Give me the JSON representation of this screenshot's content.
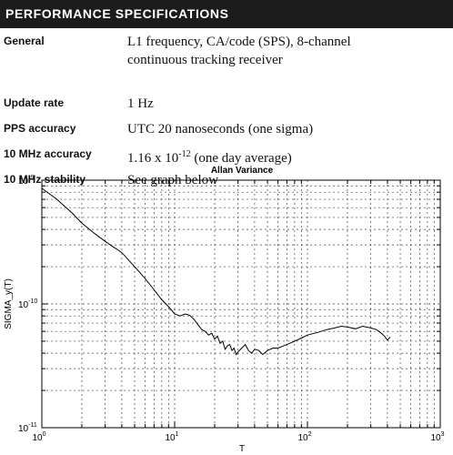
{
  "header": {
    "title": "PERFORMANCE SPECIFICATIONS"
  },
  "specs": [
    {
      "label": "General",
      "value_line1": "L1 frequency, CA/code (SPS), 8-channel",
      "value_line2": "continuous tracking receiver"
    },
    {
      "label": "Update rate",
      "value_line1": "1 Hz"
    },
    {
      "label": "PPS accuracy",
      "value_line1": "UTC 20 nanoseconds (one sigma)"
    },
    {
      "label": "10 MHz accuracy",
      "value_pre": "1.16 x 10",
      "value_exp": "-12",
      "value_post": " (one day average)"
    },
    {
      "label": "10 MHz stability",
      "value_line1": "See graph below"
    }
  ],
  "chart_data": {
    "type": "line",
    "title": "Allan Variance",
    "xlabel": "T",
    "ylabel": "SIGMA_y(T)",
    "xscale": "log",
    "yscale": "log",
    "xlim": [
      1,
      1000
    ],
    "ylim": [
      1e-11,
      1e-09
    ],
    "grid": true,
    "x_ticks": [
      {
        "base": "10",
        "exp": "0"
      },
      {
        "base": "10",
        "exp": "1"
      },
      {
        "base": "10",
        "exp": "2"
      },
      {
        "base": "10",
        "exp": "3"
      }
    ],
    "y_ticks": [
      {
        "base": "10",
        "exp": "-11"
      },
      {
        "base": "10",
        "exp": "-10"
      },
      {
        "base": "10",
        "exp": "-9"
      }
    ],
    "series": [
      {
        "x": [
          1,
          1.3,
          1.7,
          2,
          2.5,
          3,
          4,
          5,
          6,
          7,
          8,
          9,
          10,
          11,
          12,
          13,
          14,
          15,
          16,
          17,
          18,
          19,
          20,
          21,
          22,
          23,
          24,
          25,
          26,
          27,
          28,
          29,
          30,
          32,
          34,
          36,
          38,
          40,
          43,
          46,
          50,
          55,
          60,
          70,
          80,
          90,
          100,
          120,
          140,
          160,
          180,
          200,
          230,
          260,
          300,
          330,
          360,
          380,
          400,
          420
        ],
        "y": [
          8.6e-10,
          7e-10,
          5.4e-10,
          4.5e-10,
          3.7e-10,
          3.2e-10,
          2.6e-10,
          2e-10,
          1.6e-10,
          1.3e-10,
          1.08e-10,
          9.5e-11,
          8.3e-11,
          8e-11,
          8.3e-11,
          8.1e-11,
          7.5e-11,
          6.8e-11,
          6.2e-11,
          6e-11,
          5.6e-11,
          5.8e-11,
          5.2e-11,
          5.5e-11,
          4.8e-11,
          5e-11,
          4.3e-11,
          4.6e-11,
          4.7e-11,
          4.2e-11,
          4.4e-11,
          3.9e-11,
          4.1e-11,
          4.4e-11,
          4.7e-11,
          4.2e-11,
          4e-11,
          4.3e-11,
          4.2e-11,
          3.9e-11,
          4.2e-11,
          4.4e-11,
          4.4e-11,
          4.7e-11,
          5e-11,
          5.3e-11,
          5.6e-11,
          5.9e-11,
          6.2e-11,
          6.4e-11,
          6.6e-11,
          6.5e-11,
          6.3e-11,
          6.6e-11,
          6.4e-11,
          6.2e-11,
          5.8e-11,
          5.5e-11,
          5.1e-11,
          5.4e-11
        ]
      }
    ]
  }
}
